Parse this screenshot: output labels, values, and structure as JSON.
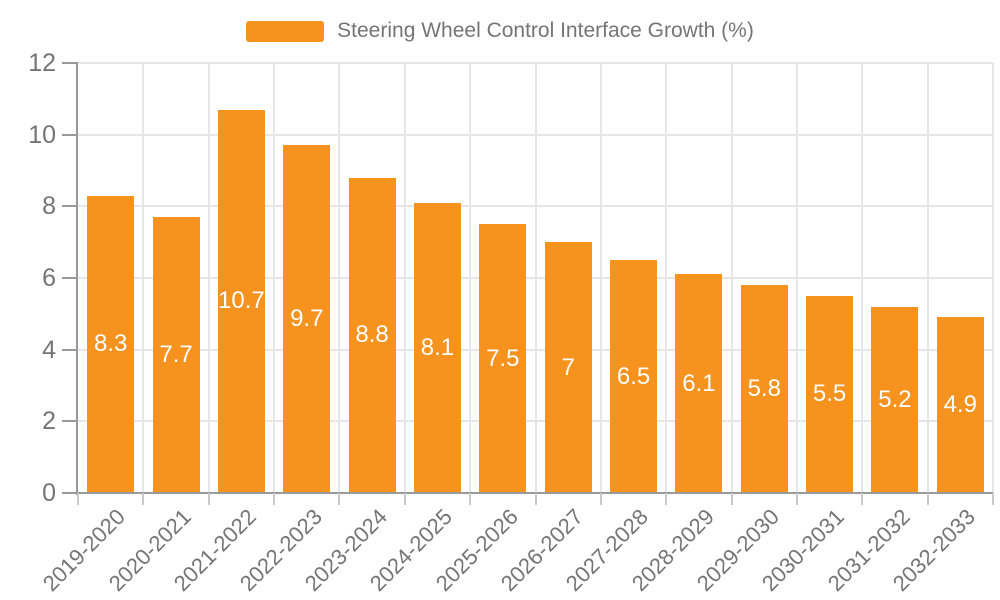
{
  "legend": {
    "label": "Steering Wheel Control Interface Growth (%)"
  },
  "colors": {
    "bar": "#F6921E",
    "grid": "#E6E6E6",
    "axis": "#999999",
    "tick_label": "#757575",
    "value_label": "#FFFFFF",
    "background": "#FFFFFF"
  },
  "chart_data": {
    "type": "bar",
    "title": "Steering Wheel Control Interface Growth (%)",
    "categories": [
      "2019-2020",
      "2020-2021",
      "2021-2022",
      "2022-2023",
      "2023-2024",
      "2024-2025",
      "2025-2026",
      "2026-2027",
      "2027-2028",
      "2028-2029",
      "2029-2030",
      "2030-2031",
      "2031-2032",
      "2032-2033"
    ],
    "values": [
      8.3,
      7.7,
      10.7,
      9.7,
      8.8,
      8.1,
      7.5,
      7,
      6.5,
      6.1,
      5.8,
      5.5,
      5.2,
      4.9
    ],
    "xlabel": "",
    "ylabel": "",
    "ylim": [
      0,
      12
    ],
    "yticks": [
      0,
      2,
      4,
      6,
      8,
      10,
      12
    ],
    "grid": true,
    "legend_position": "top-center",
    "value_label_position": "inside-center",
    "xlabel_rotation_deg": 45
  }
}
